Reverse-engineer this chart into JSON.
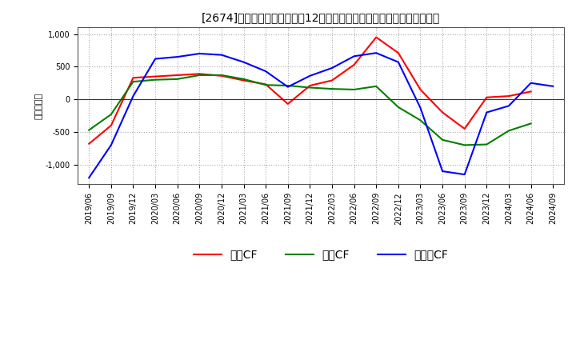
{
  "title": "[2674]　キャッシュフローの12か月移動合計の対前年同期増減額の推移",
  "ylabel": "（百万円）",
  "ylim": [
    -1300,
    1100
  ],
  "yticks": [
    -1000,
    -500,
    0,
    500,
    1000
  ],
  "background_color": "#ffffff",
  "grid_color": "#aaaaaa",
  "x_labels": [
    "2019/06",
    "2019/09",
    "2019/12",
    "2020/03",
    "2020/06",
    "2020/09",
    "2020/12",
    "2021/03",
    "2021/06",
    "2021/09",
    "2021/12",
    "2022/03",
    "2022/06",
    "2022/09",
    "2022/12",
    "2023/03",
    "2023/06",
    "2023/09",
    "2023/12",
    "2024/03",
    "2024/06",
    "2024/09"
  ],
  "operating_cf": [
    -680,
    -400,
    330,
    350,
    370,
    390,
    360,
    290,
    230,
    -70,
    210,
    290,
    530,
    950,
    710,
    150,
    -200,
    -450,
    30,
    50,
    120,
    null
  ],
  "investing_cf": [
    -470,
    -230,
    270,
    300,
    310,
    370,
    370,
    310,
    220,
    210,
    180,
    160,
    150,
    200,
    -120,
    -320,
    -620,
    -700,
    -690,
    -480,
    -370,
    null
  ],
  "free_cf": [
    -1200,
    -700,
    50,
    620,
    650,
    700,
    680,
    570,
    430,
    190,
    360,
    480,
    660,
    710,
    570,
    -130,
    -1100,
    -1150,
    -200,
    -100,
    250,
    200
  ],
  "line_colors": {
    "operating": "#ff0000",
    "investing": "#008000",
    "free": "#0000ff"
  },
  "legend_labels": [
    "営業CF",
    "投資CF",
    "フリーCF"
  ]
}
